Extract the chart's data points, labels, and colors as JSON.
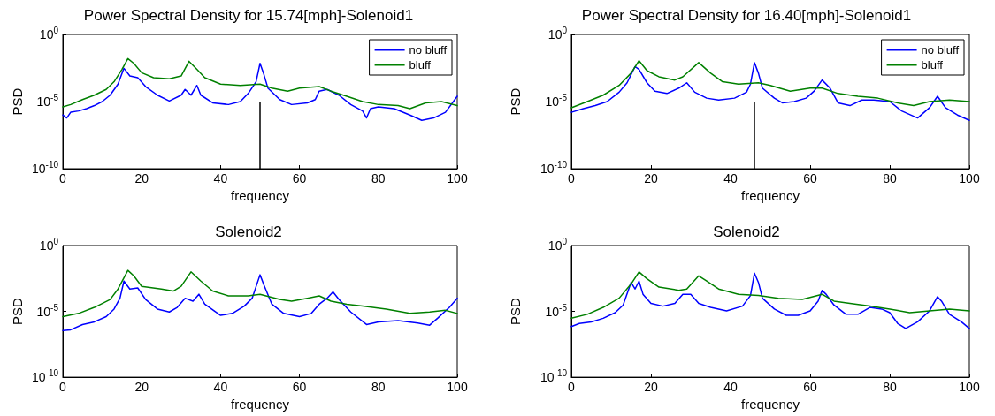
{
  "chart_data": [
    {
      "type": "line",
      "title": "Power Spectral Density for 15.74[mph]-Solenoid1",
      "xlabel": "frequency",
      "ylabel": "PSD",
      "log": "y",
      "grid": false,
      "legend": "top right",
      "marker": "none",
      "line_style": "solid",
      "xlim": [
        0,
        100
      ],
      "xticks": [
        0,
        20,
        40,
        60,
        80,
        100
      ],
      "ylim": [
        1e-10,
        1
      ],
      "yticks": [
        {
          "value": 1e-10,
          "label": "10$^{-10}$"
        },
        {
          "value": 1e-05,
          "label": "10$^{-5}$"
        },
        {
          "value": 1,
          "label": "10$^{0}$"
        }
      ],
      "ref_lines": [
        {
          "axis": "x",
          "value": 50,
          "color": "#000000",
          "line_style": "solid"
        }
      ],
      "series": [
        {
          "name": "no bluff",
          "color": "#0000ff",
          "x": [
            0,
            1,
            2,
            4,
            6,
            8,
            10,
            12,
            14,
            15.5,
            17,
            19,
            21,
            24,
            27,
            30,
            31,
            32.5,
            34,
            35,
            38,
            42,
            45,
            47,
            49,
            50,
            51,
            52,
            55,
            58,
            62,
            64,
            65,
            67,
            70,
            73,
            76,
            77,
            78,
            80,
            84,
            88,
            91,
            94,
            97,
            100
          ],
          "values": [
            1e-06,
            6e-07,
            1.6e-06,
            2e-06,
            3e-06,
            5e-06,
            1e-05,
            3e-05,
            0.0002,
            0.003,
            0.0008,
            0.0006,
            0.00013,
            3e-05,
            1.1e-05,
            3e-05,
            8e-05,
            3e-05,
            0.00016,
            3e-05,
            8e-06,
            6e-06,
            1e-05,
            4e-05,
            0.0003,
            0.007,
            0.001,
            0.0001,
            1.4e-05,
            6e-06,
            8e-06,
            1.4e-05,
            6e-05,
            8e-05,
            3e-05,
            6e-06,
            2e-06,
            6e-07,
            3e-06,
            4e-06,
            3e-06,
            1e-06,
            4e-07,
            6e-07,
            1.6e-06,
            2.5e-05
          ]
        },
        {
          "name": "bluff",
          "color": "#008000",
          "x": [
            0,
            2,
            5,
            8,
            11,
            13,
            15,
            16.5,
            18,
            20,
            23,
            27,
            30,
            32,
            34,
            36,
            40,
            45,
            50,
            53,
            57,
            60,
            65,
            68,
            72,
            76,
            80,
            85,
            88,
            92,
            96,
            100
          ],
          "values": [
            4e-06,
            6e-06,
            1.4e-05,
            3e-05,
            8e-05,
            0.0003,
            0.0025,
            0.016,
            0.007,
            0.0014,
            0.0006,
            0.0005,
            0.0008,
            0.01,
            0.0025,
            0.0006,
            0.0002,
            0.00016,
            0.0002,
            0.0001,
            6e-05,
            0.0001,
            0.00013,
            6e-05,
            2.5e-05,
            1e-05,
            6e-06,
            5e-06,
            3e-06,
            8e-06,
            1e-05,
            5e-06
          ]
        }
      ]
    },
    {
      "type": "line",
      "title": "Power Spectral Density for 16.40[mph]-Solenoid1",
      "xlabel": "frequency",
      "ylabel": "PSD",
      "log": "y",
      "grid": false,
      "legend": "top right",
      "marker": "none",
      "line_style": "solid",
      "xlim": [
        0,
        100
      ],
      "xticks": [
        0,
        20,
        40,
        60,
        80,
        100
      ],
      "ylim": [
        1e-10,
        1
      ],
      "yticks": [
        {
          "value": 1e-10,
          "label": "10$^{-10}$"
        },
        {
          "value": 1e-05,
          "label": "10$^{-5}$"
        },
        {
          "value": 1,
          "label": "10$^{0}$"
        }
      ],
      "ref_lines": [
        {
          "axis": "x",
          "value": 46,
          "color": "#000000",
          "line_style": "solid"
        }
      ],
      "series": [
        {
          "name": "no bluff",
          "color": "#0000ff",
          "x": [
            0,
            3,
            6,
            9,
            12,
            14,
            16,
            17,
            19,
            21,
            24,
            27,
            29,
            31,
            34,
            37,
            41,
            44,
            45,
            46,
            47,
            48,
            51,
            53,
            56,
            59,
            61,
            63,
            65,
            67,
            70,
            73,
            76,
            80,
            83,
            87,
            90,
            92,
            94,
            97,
            100
          ],
          "values": [
            1.6e-06,
            3e-06,
            5e-06,
            1e-05,
            5e-05,
            0.00025,
            0.004,
            0.0025,
            0.00025,
            6e-05,
            4e-05,
            0.0001,
            0.00025,
            5e-05,
            1.8e-05,
            1.3e-05,
            1.8e-05,
            5e-05,
            0.0002,
            0.008,
            0.0013,
            0.0001,
            1.8e-05,
            8e-06,
            1e-05,
            1.8e-05,
            6e-05,
            0.0004,
            0.0001,
            8e-06,
            5e-06,
            1.3e-05,
            1.3e-05,
            1e-05,
            2e-06,
            6e-07,
            3.5e-06,
            2.5e-05,
            3.5e-06,
            1e-06,
            4e-07
          ]
        },
        {
          "name": "bluff",
          "color": "#008000",
          "x": [
            0,
            4,
            8,
            12,
            15,
            17,
            19,
            22,
            26,
            28,
            32,
            35,
            38,
            42,
            47,
            50,
            55,
            60,
            63,
            67,
            72,
            77,
            82,
            86,
            90,
            95,
            100
          ],
          "values": [
            3.5e-06,
            1e-05,
            3e-05,
            0.00016,
            0.0013,
            0.011,
            0.002,
            0.0007,
            0.0004,
            0.0007,
            0.008,
            0.0013,
            0.0003,
            0.0002,
            0.00025,
            0.00016,
            6e-05,
            0.0001,
            0.0001,
            4e-05,
            2.5e-05,
            1.8e-05,
            8e-06,
            5e-06,
            1e-05,
            1.3e-05,
            1e-05
          ]
        }
      ]
    },
    {
      "type": "line",
      "title": "Solenoid2",
      "xlabel": "frequency",
      "ylabel": "PSD",
      "log": "y",
      "grid": false,
      "marker": "none",
      "line_style": "solid",
      "xlim": [
        0,
        100
      ],
      "xticks": [
        0,
        20,
        40,
        60,
        80,
        100
      ],
      "ylim": [
        1e-10,
        1
      ],
      "yticks": [
        {
          "value": 1e-10,
          "label": "10$^{-10}$"
        },
        {
          "value": 1e-05,
          "label": "10$^{-5}$"
        },
        {
          "value": 1,
          "label": "10$^{0}$"
        }
      ],
      "series": [
        {
          "color": "#0000ff",
          "x": [
            0,
            2,
            5,
            8,
            11,
            13,
            14.5,
            15.5,
            17,
            19,
            21,
            24,
            27,
            29,
            31,
            33,
            34.5,
            36,
            40,
            43,
            46,
            48,
            50,
            51,
            53,
            56,
            60,
            63,
            65,
            67,
            68.5,
            70,
            73,
            77,
            80,
            85,
            90,
            93,
            95,
            98,
            100
          ],
          "values": [
            3.5e-07,
            4e-07,
            1e-06,
            1.6e-06,
            4e-06,
            1.5e-05,
            0.0001,
            0.002,
            0.0005,
            0.0006,
            8e-05,
            1.5e-05,
            9e-06,
            2e-05,
            0.0001,
            6e-05,
            0.0002,
            3.5e-05,
            5e-06,
            7e-06,
            2.5e-05,
            0.0001,
            0.006,
            0.001,
            3.5e-05,
            7e-06,
            4e-06,
            7e-06,
            3.5e-05,
            0.0001,
            0.0003,
            8e-05,
            9e-06,
            1e-06,
            1.6e-06,
            2e-06,
            1.3e-06,
            9e-07,
            3e-06,
            2e-05,
            0.0001
          ]
        },
        {
          "color": "#008000",
          "x": [
            0,
            4,
            8,
            12,
            14,
            16.5,
            18,
            20,
            25,
            28,
            30,
            32.5,
            35,
            38,
            42,
            47,
            50,
            55,
            58,
            62,
            65,
            68,
            72,
            76,
            82,
            88,
            93,
            97,
            100
          ],
          "values": [
            4e-06,
            7e-06,
            2e-05,
            8e-05,
            0.0005,
            0.013,
            0.005,
            0.0008,
            0.0005,
            0.00035,
            0.0008,
            0.01,
            0.002,
            0.00035,
            0.00015,
            0.00015,
            0.0002,
            8e-05,
            6e-05,
            0.0001,
            0.00015,
            6e-05,
            3.5e-05,
            2.5e-05,
            1.5e-05,
            7e-06,
            9e-06,
            1.2e-05,
            7e-06
          ]
        }
      ]
    },
    {
      "type": "line",
      "title": "Solenoid2",
      "xlabel": "frequency",
      "ylabel": "PSD",
      "log": "y",
      "grid": false,
      "marker": "none",
      "line_style": "solid",
      "xlim": [
        0,
        100
      ],
      "xticks": [
        0,
        20,
        40,
        60,
        80,
        100
      ],
      "ylim": [
        1e-10,
        1
      ],
      "yticks": [
        {
          "value": 1e-10,
          "label": "10$^{-10}$"
        },
        {
          "value": 1e-05,
          "label": "10$^{-5}$"
        },
        {
          "value": 1,
          "label": "10$^{0}$"
        }
      ],
      "series": [
        {
          "color": "#0000ff",
          "x": [
            0,
            2,
            5,
            8,
            11,
            13,
            15,
            16,
            17,
            18,
            20,
            23,
            26,
            28,
            30,
            32,
            35,
            39,
            43,
            45,
            46,
            47,
            48,
            51,
            54,
            57,
            60,
            62,
            63,
            64,
            66,
            69,
            72,
            75,
            78,
            80,
            82,
            84,
            87,
            90,
            92,
            93,
            95,
            98,
            100
          ],
          "values": [
            7e-07,
            1.2e-06,
            1.6e-06,
            3e-06,
            8e-06,
            3e-05,
            0.0016,
            0.0005,
            0.002,
            0.0002,
            4e-05,
            2.5e-05,
            4e-05,
            0.0002,
            0.0002,
            4e-05,
            2e-05,
            1.1e-05,
            2.5e-05,
            0.00016,
            0.008,
            0.0016,
            0.0001,
            1.5e-05,
            5e-06,
            5e-06,
            1.1e-05,
            6e-05,
            0.0004,
            0.0002,
            3e-05,
            6e-06,
            6e-06,
            2e-05,
            1.5e-05,
            8e-06,
            1.2e-06,
            5e-07,
            1.6e-06,
            1.1e-05,
            0.00013,
            6e-05,
            6e-06,
            1.6e-06,
            5e-07
          ]
        },
        {
          "color": "#008000",
          "x": [
            0,
            4,
            8,
            12,
            15,
            17,
            19,
            22,
            27,
            29,
            32,
            34,
            37,
            42,
            47,
            52,
            58,
            63,
            66,
            70,
            75,
            80,
            85,
            90,
            95,
            100
          ],
          "values": [
            3e-06,
            6e-06,
            2e-05,
            0.0001,
            0.0012,
            0.01,
            0.003,
            0.0007,
            0.0004,
            0.0005,
            0.005,
            0.002,
            0.0005,
            0.0002,
            0.00016,
            0.0001,
            8e-05,
            0.0002,
            6e-05,
            4e-05,
            2.5e-05,
            1.5e-05,
            8e-06,
            1.1e-05,
            1.5e-05,
            1.1e-05
          ]
        }
      ]
    }
  ]
}
